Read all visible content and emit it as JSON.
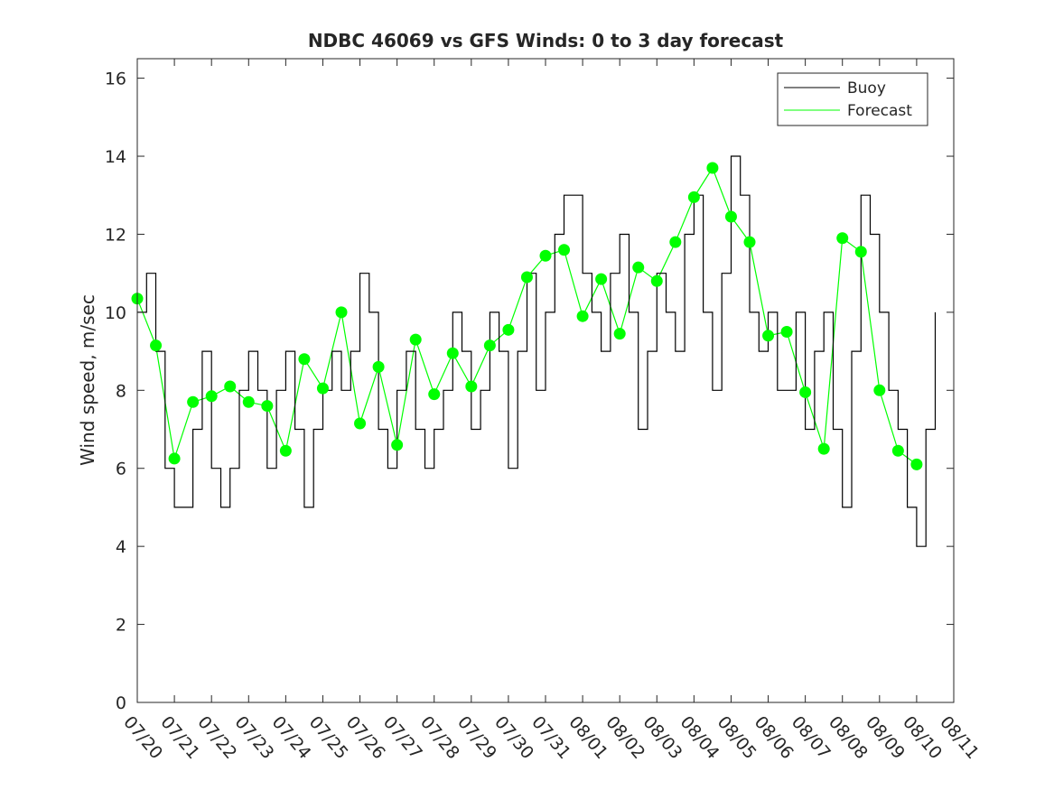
{
  "chart_data": {
    "type": "line",
    "title": "NDBC 46069 vs GFS Winds: 0 to 3 day forecast",
    "xlabel": "",
    "ylabel": "Wind speed, m/sec",
    "ylim": [
      0,
      16.5
    ],
    "xlim": [
      "07/20",
      "08/11"
    ],
    "yticks": [
      0,
      2,
      4,
      6,
      8,
      10,
      12,
      14,
      16
    ],
    "xtick_labels": [
      "07/20",
      "07/21",
      "07/22",
      "07/23",
      "07/24",
      "07/25",
      "07/26",
      "07/27",
      "07/28",
      "07/29",
      "07/30",
      "07/31",
      "08/01",
      "08/02",
      "08/03",
      "08/04",
      "08/05",
      "08/06",
      "08/07",
      "08/08",
      "08/09",
      "08/10",
      "08/11"
    ],
    "grid": false,
    "legend": {
      "position": "top-right",
      "entries": [
        "Buoy",
        "Forecast"
      ]
    },
    "colors": {
      "buoy": "#000000",
      "forecast": "#00ff00",
      "axes": "#262626"
    },
    "series": [
      {
        "name": "Buoy",
        "x": [
          "07/20 00:00",
          "07/20 06:00",
          "07/20 12:00",
          "07/20 18:00",
          "07/21 00:00",
          "07/21 06:00",
          "07/21 12:00",
          "07/21 18:00",
          "07/22 00:00",
          "07/22 06:00",
          "07/22 12:00",
          "07/22 18:00",
          "07/23 00:00",
          "07/23 06:00",
          "07/23 12:00",
          "07/23 18:00",
          "07/24 00:00",
          "07/24 06:00",
          "07/24 12:00",
          "07/24 18:00",
          "07/25 00:00",
          "07/25 06:00",
          "07/25 12:00",
          "07/25 18:00",
          "07/26 00:00",
          "07/26 06:00",
          "07/26 12:00",
          "07/26 18:00",
          "07/27 00:00",
          "07/27 06:00",
          "07/27 12:00",
          "07/27 18:00",
          "07/28 00:00",
          "07/28 06:00",
          "07/28 12:00",
          "07/28 18:00",
          "07/29 00:00",
          "07/29 06:00",
          "07/29 12:00",
          "07/29 18:00",
          "07/30 00:00",
          "07/30 06:00",
          "07/30 12:00",
          "07/30 18:00",
          "07/31 00:00",
          "07/31 06:00",
          "07/31 12:00",
          "07/31 18:00",
          "08/01 00:00",
          "08/01 06:00",
          "08/01 12:00",
          "08/01 18:00",
          "08/02 00:00",
          "08/02 06:00",
          "08/02 12:00",
          "08/02 18:00",
          "08/03 00:00",
          "08/03 06:00",
          "08/03 12:00",
          "08/03 18:00",
          "08/04 00:00",
          "08/04 06:00",
          "08/04 12:00",
          "08/04 18:00",
          "08/05 00:00",
          "08/05 06:00",
          "08/05 12:00",
          "08/05 18:00",
          "08/06 00:00",
          "08/06 06:00",
          "08/06 12:00",
          "08/06 18:00",
          "08/07 00:00",
          "08/07 06:00",
          "08/07 12:00",
          "08/07 18:00",
          "08/08 00:00",
          "08/08 06:00",
          "08/08 12:00",
          "08/08 18:00",
          "08/09 00:00",
          "08/09 06:00",
          "08/09 12:00",
          "08/09 18:00",
          "08/10 00:00",
          "08/10 06:00",
          "08/10 12:00"
        ],
        "values": [
          10,
          11,
          9,
          6,
          5,
          5,
          7,
          9,
          6,
          5,
          6,
          8,
          9,
          8,
          6,
          8,
          9,
          7,
          5,
          7,
          8,
          9,
          8,
          9,
          11,
          10,
          7,
          6,
          8,
          9,
          7,
          6,
          7,
          8,
          10,
          9,
          7,
          8,
          10,
          9,
          6,
          9,
          11,
          8,
          10,
          12,
          13,
          13,
          11,
          10,
          9,
          11,
          12,
          10,
          7,
          9,
          11,
          10,
          9,
          12,
          13,
          10,
          8,
          11,
          14,
          13,
          10,
          9,
          10,
          8,
          8,
          10,
          7,
          9,
          10,
          7,
          5,
          9,
          13,
          12,
          10,
          8,
          7,
          5,
          4,
          7,
          10
        ]
      },
      {
        "name": "Forecast",
        "x": [
          "07/20 00:00",
          "07/20 12:00",
          "07/21 00:00",
          "07/21 12:00",
          "07/22 00:00",
          "07/22 12:00",
          "07/23 00:00",
          "07/23 12:00",
          "07/24 00:00",
          "07/24 12:00",
          "07/25 00:00",
          "07/25 12:00",
          "07/26 00:00",
          "07/26 12:00",
          "07/27 00:00",
          "07/27 12:00",
          "07/28 00:00",
          "07/28 12:00",
          "07/29 00:00",
          "07/29 12:00",
          "07/30 00:00",
          "07/30 12:00",
          "07/31 00:00",
          "07/31 12:00",
          "08/01 00:00",
          "08/01 12:00",
          "08/02 00:00",
          "08/02 12:00",
          "08/03 00:00",
          "08/03 12:00",
          "08/04 00:00",
          "08/04 12:00",
          "08/05 00:00",
          "08/05 12:00",
          "08/06 00:00",
          "08/06 12:00",
          "08/07 00:00",
          "08/07 12:00",
          "08/08 00:00",
          "08/08 12:00",
          "08/09 00:00",
          "08/09 12:00",
          "08/10 00:00"
        ],
        "values": [
          10.35,
          9.15,
          6.25,
          7.7,
          7.85,
          8.1,
          7.7,
          7.6,
          6.45,
          8.8,
          8.05,
          10.0,
          7.15,
          8.6,
          6.6,
          9.3,
          7.9,
          8.95,
          8.1,
          9.15,
          9.55,
          10.9,
          11.45,
          11.6,
          9.9,
          10.85,
          9.45,
          11.15,
          10.8,
          11.8,
          12.95,
          13.7,
          12.45,
          11.8,
          9.4,
          9.5,
          7.95,
          6.5,
          11.9,
          11.55,
          8.0,
          6.45,
          6.1
        ]
      }
    ]
  }
}
